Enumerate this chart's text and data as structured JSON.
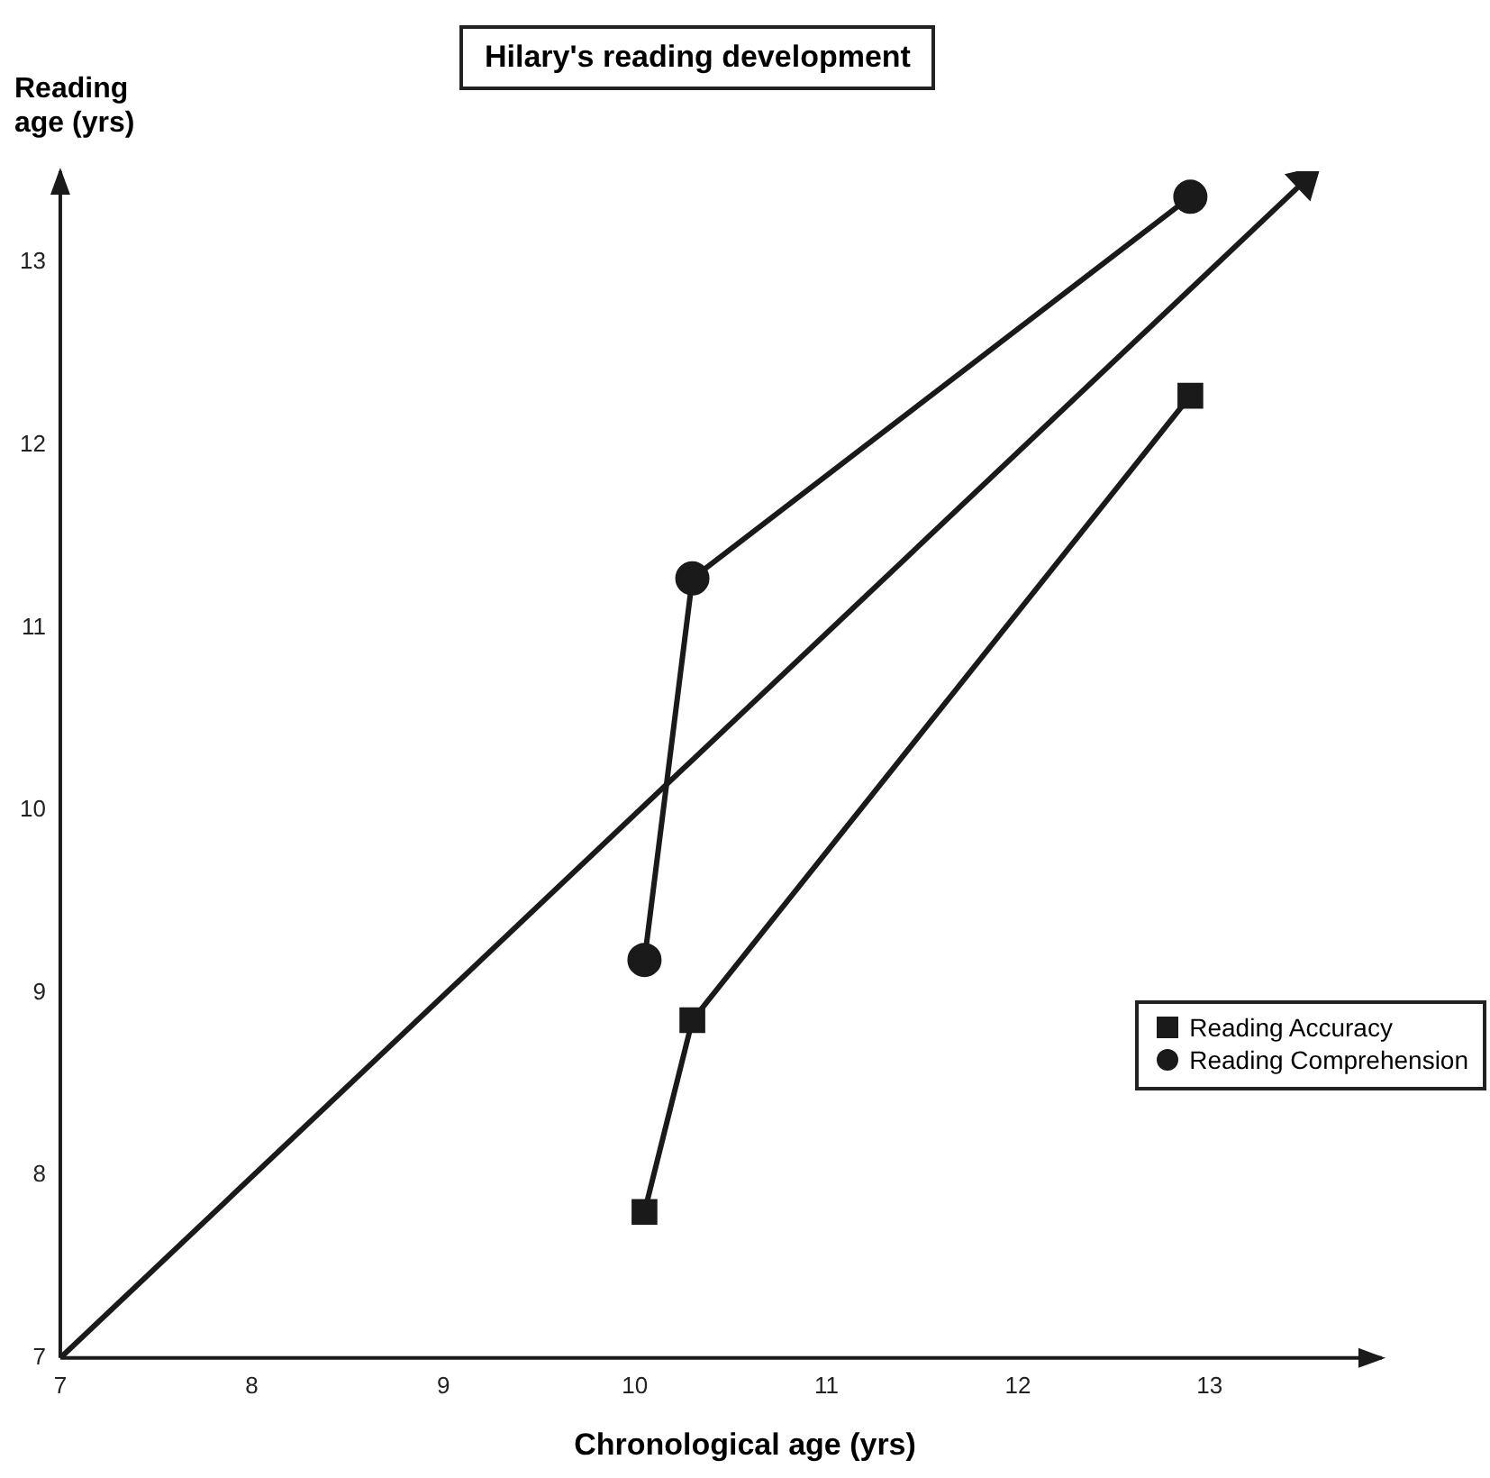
{
  "chart_data": {
    "type": "line",
    "title": "Hilary's reading development",
    "xlabel": "Chronological age (yrs)",
    "ylabel": "Reading age (yrs)",
    "xlim": [
      7,
      13.9
    ],
    "ylim": [
      7,
      13.5
    ],
    "xticks": [
      7,
      8,
      9,
      10,
      11,
      12,
      13
    ],
    "yticks": [
      7,
      8,
      9,
      10,
      11,
      12,
      13
    ],
    "grid": false,
    "legend": "bottom right",
    "series": [
      {
        "name": "Reading Accuracy",
        "color": "#1a1a1a",
        "marker": "square",
        "x": [
          10.05,
          10.3,
          12.9
        ],
        "values": [
          7.8,
          8.85,
          12.27
        ]
      },
      {
        "name": "Reading Comprehension",
        "color": "#1a1a1a",
        "marker": "circle",
        "x": [
          10.05,
          10.3,
          12.9
        ],
        "values": [
          9.18,
          11.27,
          13.36
        ]
      },
      {
        "color": "#1a1a1a",
        "marker": "triangle",
        "x": [
          7,
          13.5
        ],
        "values": [
          7,
          13.45
        ]
      }
    ]
  }
}
